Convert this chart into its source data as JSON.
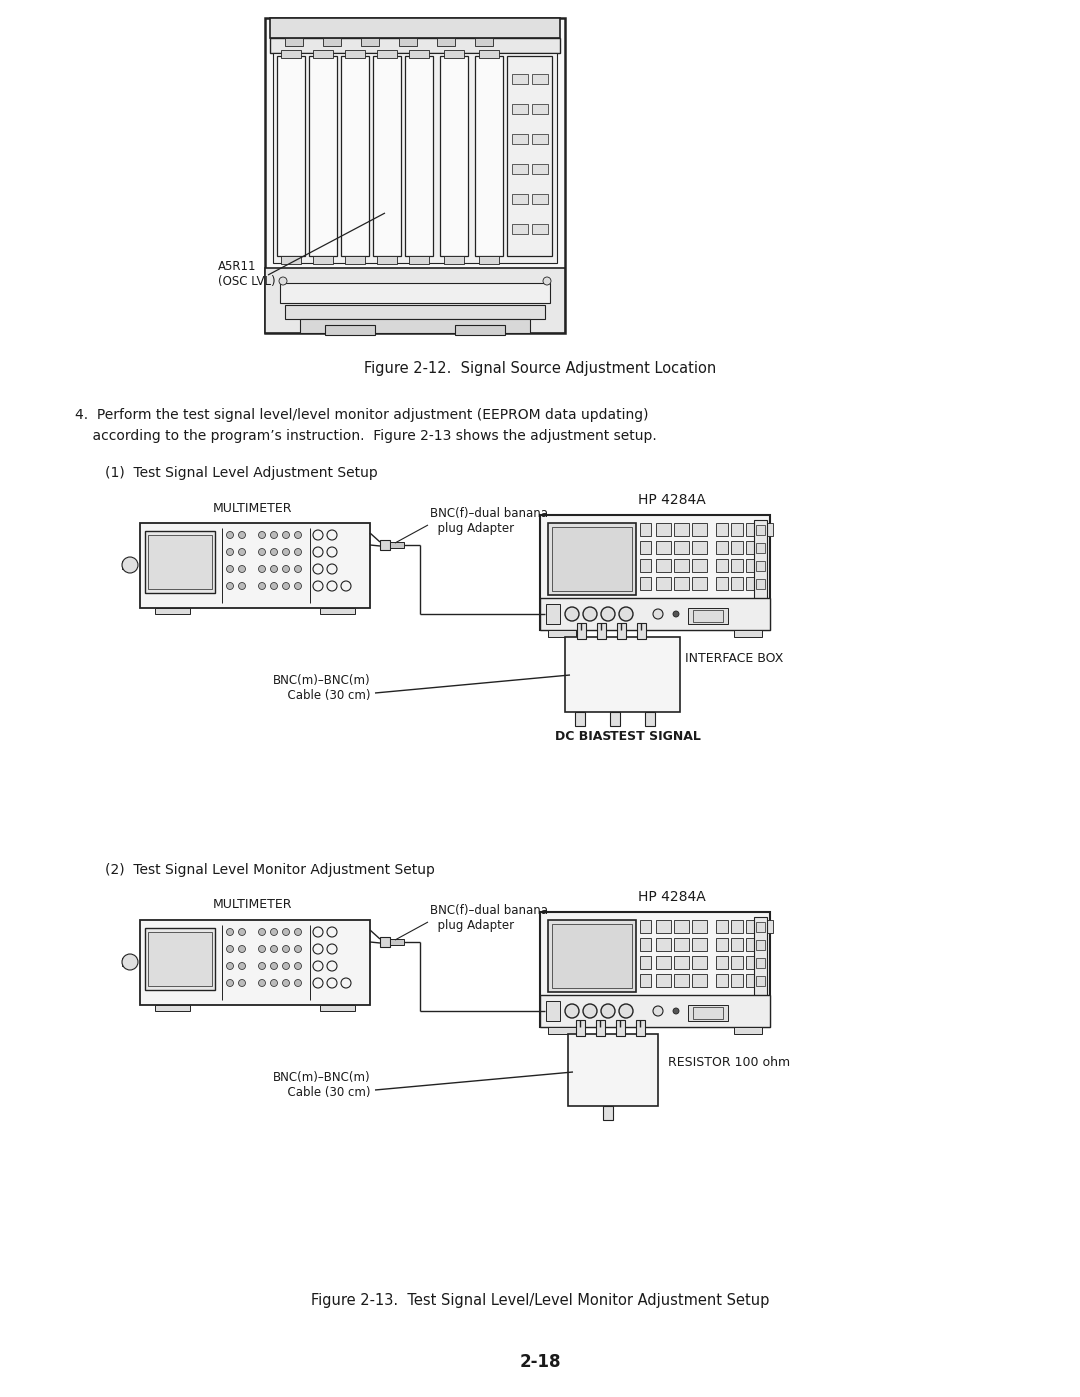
{
  "bg_color": "#ffffff",
  "text_color": "#1a1a1a",
  "line_color": "#222222",
  "page_number": "2-18",
  "fig_12_caption": "Figure 2-12.  Signal Source Adjustment Location",
  "fig_13_caption": "Figure 2-13.  Test Signal Level/Level Monitor Adjustment Setup",
  "label_a5r11": "A5R11",
  "label_osc": "(OSC LVL)",
  "step4_line1": "4.  Perform the test signal level/level monitor adjustment (EEPROM data updating)",
  "step4_line2": "    according to the program’s instruction.  Figure 2-13 shows the adjustment setup.",
  "sub1_title": "(1)  Test Signal Level Adjustment Setup",
  "sub2_title": "(2)  Test Signal Level Monitor Adjustment Setup",
  "label_multimeter": "MULTIMETER",
  "label_hp": "HP 4284A",
  "label_bnc_f": "BNC(f)–dual banana\n  plug Adapter",
  "label_bnc_m": "BNC(m)–BNC(m)\n  Cable (30 cm)",
  "label_interface": "INTERFACE BOX",
  "label_dc_bias": "DC BIAS",
  "label_test_signal": "TEST SIGNAL",
  "label_resistor": "RESISTOR 100 ohm"
}
